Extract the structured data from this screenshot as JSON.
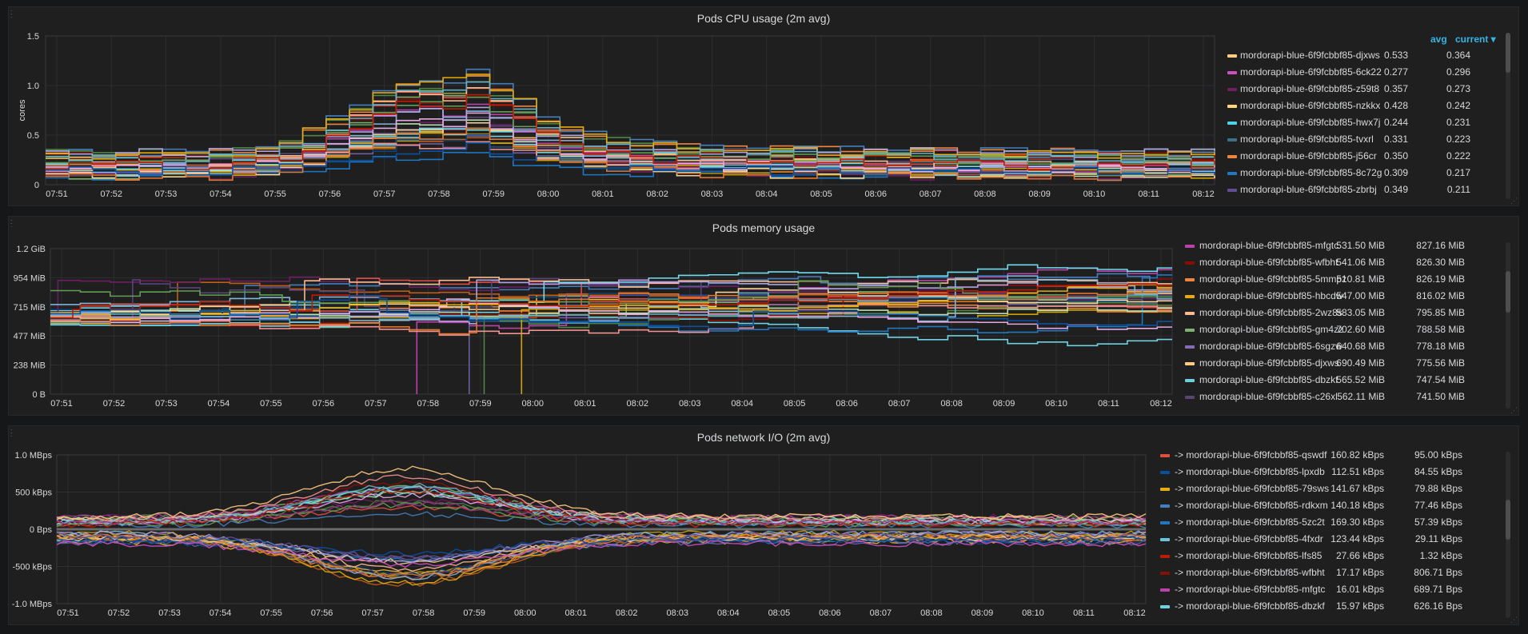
{
  "panels": [
    {
      "title": "Pods CPU usage (2m avg)",
      "ylabel": "cores",
      "ylim": [
        0,
        1.5
      ],
      "y_ticks": [
        "0",
        "0.5",
        "1.0",
        "1.5"
      ],
      "x_ticks": [
        "07:51",
        "07:52",
        "07:53",
        "07:54",
        "07:55",
        "07:56",
        "07:57",
        "07:58",
        "07:59",
        "08:00",
        "08:01",
        "08:02",
        "08:03",
        "08:04",
        "08:05",
        "08:06",
        "08:07",
        "08:08",
        "08:09",
        "08:10",
        "08:11",
        "08:12"
      ],
      "legend_headers": {
        "avg": "avg",
        "current": "current ▾"
      },
      "legend": [
        {
          "name": "mordorapi-blue-6f9fcbbf85-djxws",
          "color": "#ffcc80",
          "avg": "0.533",
          "current": "0.364"
        },
        {
          "name": "mordorapi-blue-6f9fcbbf85-6ck22",
          "color": "#d04fbf",
          "avg": "0.277",
          "current": "0.296"
        },
        {
          "name": "mordorapi-blue-6f9fcbbf85-z59t8",
          "color": "#6d1f62",
          "avg": "0.357",
          "current": "0.273"
        },
        {
          "name": "mordorapi-blue-6f9fcbbf85-nzkkx",
          "color": "#ffd97a",
          "avg": "0.428",
          "current": "0.242"
        },
        {
          "name": "mordorapi-blue-6f9fcbbf85-hwx7j",
          "color": "#4fd1e8",
          "avg": "0.244",
          "current": "0.231"
        },
        {
          "name": "mordorapi-blue-6f9fcbbf85-tvxrl",
          "color": "#3f6f86",
          "avg": "0.331",
          "current": "0.223"
        },
        {
          "name": "mordorapi-blue-6f9fcbbf85-j56cr",
          "color": "#ef843c",
          "avg": "0.350",
          "current": "0.222"
        },
        {
          "name": "mordorapi-blue-6f9fcbbf85-8c72g",
          "color": "#1f78c1",
          "avg": "0.309",
          "current": "0.217"
        },
        {
          "name": "mordorapi-blue-6f9fcbbf85-zbrbj",
          "color": "#614d93",
          "avg": "0.349",
          "current": "0.211"
        }
      ]
    },
    {
      "title": "Pods memory usage",
      "ylabel": "",
      "y_ticks": [
        "0 B",
        "238 MiB",
        "477 MiB",
        "715 MiB",
        "954 MiB",
        "1.2 GiB"
      ],
      "x_ticks": [
        "07:51",
        "07:52",
        "07:53",
        "07:54",
        "07:55",
        "07:56",
        "07:57",
        "07:58",
        "07:59",
        "08:00",
        "08:01",
        "08:02",
        "08:03",
        "08:04",
        "08:05",
        "08:06",
        "08:07",
        "08:08",
        "08:09",
        "08:10",
        "08:11",
        "08:12"
      ],
      "legend": [
        {
          "name": "mordorapi-blue-6f9fcbbf85-mfgtc",
          "color": "#ba43a9",
          "avg": "531.50 MiB",
          "current": "827.16 MiB"
        },
        {
          "name": "mordorapi-blue-6f9fcbbf85-wfbht",
          "color": "#890f02",
          "avg": "541.06 MiB",
          "current": "826.30 MiB"
        },
        {
          "name": "mordorapi-blue-6f9fcbbf85-5mmpz",
          "color": "#ef843c",
          "avg": "510.81 MiB",
          "current": "826.19 MiB"
        },
        {
          "name": "mordorapi-blue-6f9fcbbf85-hbcdw",
          "color": "#e5ac0e",
          "avg": "547.00 MiB",
          "current": "816.02 MiB"
        },
        {
          "name": "mordorapi-blue-6f9fcbbf85-2wz8s",
          "color": "#f9ba8f",
          "avg": "583.05 MiB",
          "current": "795.85 MiB"
        },
        {
          "name": "mordorapi-blue-6f9fcbbf85-gm4zz",
          "color": "#7eb26d",
          "avg": "702.60 MiB",
          "current": "788.58 MiB"
        },
        {
          "name": "mordorapi-blue-6f9fcbbf85-6sgzw",
          "color": "#806eb7",
          "avg": "640.68 MiB",
          "current": "778.18 MiB"
        },
        {
          "name": "mordorapi-blue-6f9fcbbf85-djxws",
          "color": "#ffcc80",
          "avg": "690.49 MiB",
          "current": "775.56 MiB"
        },
        {
          "name": "mordorapi-blue-6f9fcbbf85-dbzkf",
          "color": "#6ed0e0",
          "avg": "565.52 MiB",
          "current": "747.54 MiB"
        },
        {
          "name": "mordorapi-blue-6f9fcbbf85-c26xl",
          "color": "#584477",
          "avg": "562.11 MiB",
          "current": "741.50 MiB"
        }
      ]
    },
    {
      "title": "Pods network I/O (2m avg)",
      "ylabel": "",
      "y_ticks": [
        "-1.0 MBps",
        "-500 kBps",
        "0 Bps",
        "500 kBps",
        "1.0 MBps"
      ],
      "x_ticks": [
        "07:51",
        "07:52",
        "07:53",
        "07:54",
        "07:55",
        "07:56",
        "07:57",
        "07:58",
        "07:59",
        "08:00",
        "08:01",
        "08:02",
        "08:03",
        "08:04",
        "08:05",
        "08:06",
        "08:07",
        "08:08",
        "08:09",
        "08:10",
        "08:11",
        "08:12"
      ],
      "legend": [
        {
          "name": "-> mordorapi-blue-6f9fcbbf85-qswdf",
          "color": "#e24d42",
          "avg": "160.82 kBps",
          "current": "95.00 kBps"
        },
        {
          "name": "-> mordorapi-blue-6f9fcbbf85-lpxdb",
          "color": "#0a50a1",
          "avg": "112.51 kBps",
          "current": "84.55 kBps"
        },
        {
          "name": "-> mordorapi-blue-6f9fcbbf85-79sws",
          "color": "#e5ac0e",
          "avg": "141.67 kBps",
          "current": "79.88 kBps"
        },
        {
          "name": "-> mordorapi-blue-6f9fcbbf85-rdkxm",
          "color": "#447ebc",
          "avg": "140.18 kBps",
          "current": "77.46 kBps"
        },
        {
          "name": "-> mordorapi-blue-6f9fcbbf85-5zc2t",
          "color": "#1f78c1",
          "avg": "169.30 kBps",
          "current": "57.39 kBps"
        },
        {
          "name": "-> mordorapi-blue-6f9fcbbf85-4fxdr",
          "color": "#65c5db",
          "avg": "123.44 kBps",
          "current": "29.11 kBps"
        },
        {
          "name": "-> mordorapi-blue-6f9fcbbf85-lfs85",
          "color": "#bf1b00",
          "avg": "27.66 kBps",
          "current": "1.32 kBps"
        },
        {
          "name": "-> mordorapi-blue-6f9fcbbf85-wfbht",
          "color": "#890f02",
          "avg": "17.17 kBps",
          "current": "806.71 Bps"
        },
        {
          "name": "-> mordorapi-blue-6f9fcbbf85-mfgtc",
          "color": "#ba43a9",
          "avg": "16.01 kBps",
          "current": "689.71 Bps"
        },
        {
          "name": "-> mordorapi-blue-6f9fcbbf85-dbzkf",
          "color": "#6ed0e0",
          "avg": "15.97 kBps",
          "current": "626.16 Bps"
        }
      ]
    }
  ],
  "line_palette": [
    "#7eb26d",
    "#eab839",
    "#6ed0e0",
    "#ef843c",
    "#e24d42",
    "#1f78c1",
    "#ba43a9",
    "#705da0",
    "#508642",
    "#cca300",
    "#447ebc",
    "#c15c17",
    "#890f02",
    "#0a437c",
    "#6d1f62",
    "#584477",
    "#b7dbab",
    "#f4d598",
    "#70dbed",
    "#f9ba8f",
    "#f29191",
    "#82b5d8",
    "#e5a8e2",
    "#aea2e0",
    "#629e51",
    "#e5ac0e",
    "#64b0c8",
    "#e0752d",
    "#bf1b00",
    "#0a50a1",
    "#962d82",
    "#614d93",
    "#ffcc80",
    "#d04fbf",
    "#4fd1e8",
    "#ffd97a"
  ]
}
